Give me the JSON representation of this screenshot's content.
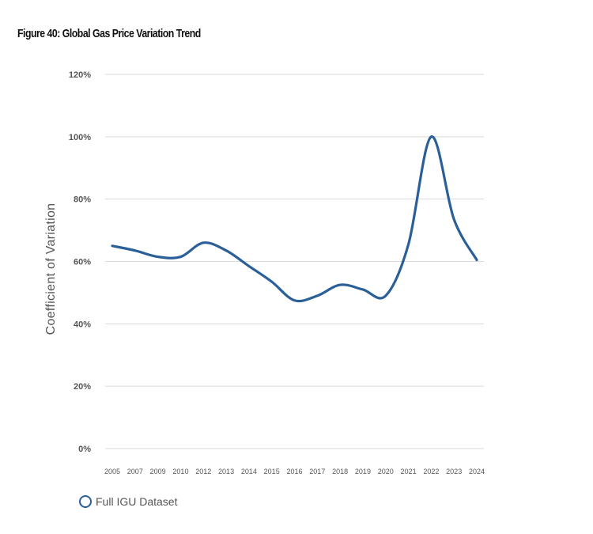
{
  "figure": {
    "title": "Figure 40: Global Gas Price Variation Trend"
  },
  "colors": {
    "line": "#2a5f98",
    "grid": "#d9d9d9",
    "text": "#555555"
  },
  "chart_data": {
    "type": "line",
    "title": "Figure 40: Global Gas Price Variation Trend",
    "xlabel": "",
    "ylabel": "Coefficient of Variation",
    "ylim": [
      0,
      120
    ],
    "y_ticks": [
      "0%",
      "20%",
      "40%",
      "60%",
      "80%",
      "100%",
      "120%"
    ],
    "categories": [
      "2005",
      "2007",
      "2009",
      "2010",
      "2012",
      "2013",
      "2014",
      "2015",
      "2016",
      "2017",
      "2018",
      "2019",
      "2020",
      "2021",
      "2022",
      "2023",
      "2024"
    ],
    "series": [
      {
        "name": "Full IGU Dataset",
        "values": [
          65,
          63.5,
          61.5,
          61.5,
          66,
          63.5,
          58.5,
          53.5,
          47.5,
          49,
          52.5,
          51,
          49,
          65.5,
          100,
          73.5,
          60.5
        ]
      }
    ],
    "grid": true,
    "legend": "bottom-left"
  }
}
